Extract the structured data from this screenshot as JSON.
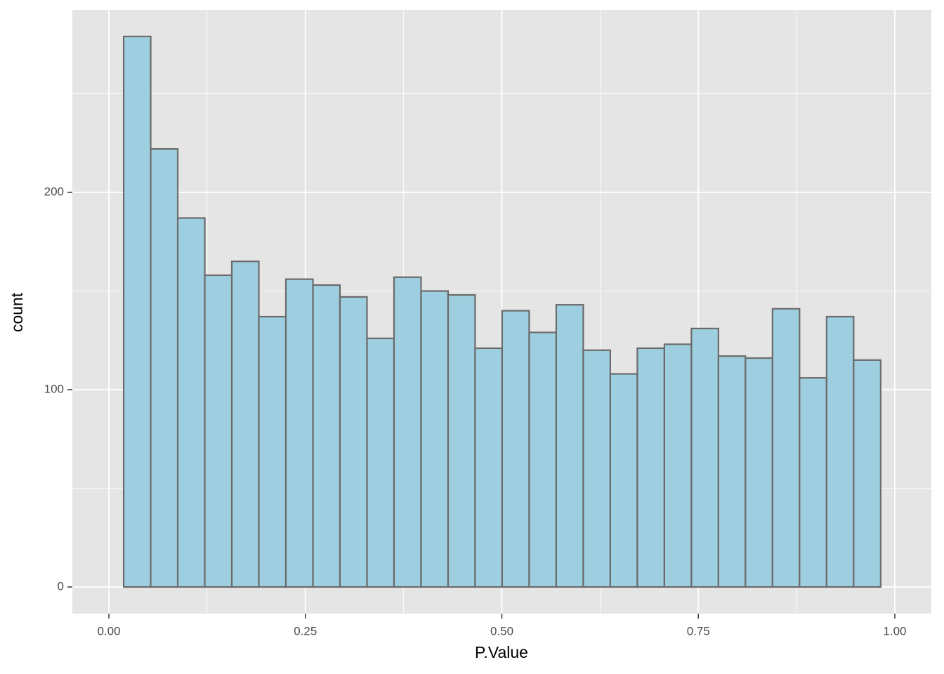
{
  "chart_data": {
    "type": "histogram",
    "x_label": "P.Value",
    "y_label": "count",
    "bins": [
      0.0188,
      0.0532,
      0.0876,
      0.122,
      0.1564,
      0.1908,
      0.2252,
      0.2596,
      0.294,
      0.3284,
      0.3628,
      0.3972,
      0.4316,
      0.466,
      0.5004,
      0.5348,
      0.5692,
      0.6036,
      0.638,
      0.6724,
      0.7068,
      0.7412,
      0.7756,
      0.81,
      0.8444,
      0.8788,
      0.9132,
      0.9476,
      0.982
    ],
    "values": [
      279,
      222,
      187,
      158,
      165,
      137,
      156,
      153,
      147,
      126,
      157,
      150,
      148,
      121,
      140,
      129,
      143,
      120,
      108,
      121,
      123,
      131,
      117,
      116,
      141,
      106,
      137,
      115
    ],
    "color": "#9ecfe0",
    "edge_color": "#6b6b6b",
    "xlim": [
      -0.0465,
      1.0465
    ],
    "ylim": [
      -13.5,
      292.5
    ],
    "xticks": [
      {
        "value": 0,
        "label": "0.00"
      },
      {
        "value": 0.25,
        "label": "0.25"
      },
      {
        "value": 0.5,
        "label": "0.50"
      },
      {
        "value": 0.75,
        "label": "0.75"
      },
      {
        "value": 1,
        "label": "1.00"
      }
    ],
    "yticks": [
      0,
      100,
      200
    ],
    "xminor": [
      0.125,
      0.375,
      0.625,
      0.875
    ],
    "yminor": [
      50,
      150,
      250
    ],
    "grid": true,
    "panel_color": "#e5e5e5"
  }
}
